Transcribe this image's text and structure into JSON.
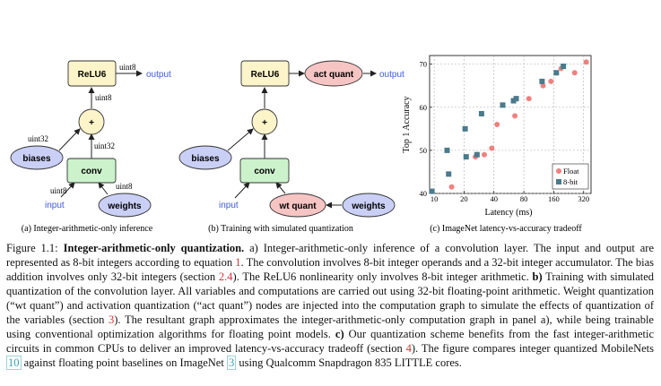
{
  "panel_a": {
    "nodes": {
      "relu": "ReLU6",
      "add": "+",
      "biases": "biases",
      "conv": "conv",
      "weights": "weights"
    },
    "labels": {
      "output": "output",
      "input": "input",
      "uint8_out": "uint8",
      "uint8_relu": "uint8",
      "uint32_bias": "uint32",
      "uint32_conv": "uint32",
      "uint8_in": "uint8",
      "uint8_w": "uint8"
    },
    "caption": "(a) Integer-arithmetic-only inference"
  },
  "panel_b": {
    "nodes": {
      "relu": "ReLU6",
      "act_quant": "act quant",
      "add": "+",
      "biases": "biases",
      "conv": "conv",
      "wt_quant": "wt quant",
      "weights": "weights"
    },
    "labels": {
      "output": "output",
      "input": "input"
    },
    "caption": "(b) Training with simulated quantization"
  },
  "panel_c": {
    "caption": "(c) ImageNet latency-vs-accuracy tradeoff"
  },
  "chart_data": {
    "type": "scatter",
    "xlabel": "Latency (ms)",
    "ylabel": "Top 1 Accuracy",
    "xscale": "log2",
    "xlim": [
      9,
      380
    ],
    "ylim": [
      40,
      72
    ],
    "xticks": [
      10,
      20,
      40,
      80,
      160,
      320
    ],
    "yticks": [
      40,
      50,
      60,
      70
    ],
    "grid": true,
    "legend": "bottom-right",
    "series": [
      {
        "name": "Float",
        "color": "#f08080",
        "marker": "circle",
        "points": [
          [
            15,
            41.5
          ],
          [
            26,
            48.5
          ],
          [
            32,
            49
          ],
          [
            38,
            50.5
          ],
          [
            43,
            56
          ],
          [
            65,
            58
          ],
          [
            90,
            62
          ],
          [
            125,
            65
          ],
          [
            150,
            66
          ],
          [
            190,
            69
          ],
          [
            260,
            68
          ],
          [
            340,
            70.5
          ]
        ]
      },
      {
        "name": "8-bit",
        "color": "#4a7a8c",
        "marker": "square",
        "points": [
          [
            9.5,
            40.5
          ],
          [
            14,
            44.5
          ],
          [
            13.5,
            50
          ],
          [
            21,
            48.5
          ],
          [
            20.5,
            55
          ],
          [
            27,
            49
          ],
          [
            30,
            58.5
          ],
          [
            49,
            60.5
          ],
          [
            63,
            61.5
          ],
          [
            67,
            62
          ],
          [
            122,
            66
          ],
          [
            170,
            68
          ],
          [
            200,
            69.5
          ]
        ]
      }
    ]
  },
  "caption": {
    "fig_label": "Figure 1.1: ",
    "title": "Integer-arithmetic-only quantization.",
    "p1": " a) Integer-arithmetic-only inference of a convolution layer. The input and output are represented as 8-bit integers according to equation ",
    "ref1": "1",
    "p2": ". The convolution involves 8-bit integer operands and a 32-bit integer accumulator. The bias addition involves only 32-bit integers (section ",
    "ref2": "2.4",
    "p3": "). The ReLU6 nonlinearity only involves 8-bit integer arithmetic. ",
    "b_label": "b)",
    "p4": " Training with simulated quantization of the convolution layer. All variables and computations are carried out using 32-bit floating-point arithmetic. Weight quantization (“wt quant”) and activation quantization (“act quant”) nodes are injected into the computation graph to simulate the effects of quantization of the variables (section ",
    "ref3": "3",
    "p5": "). The resultant graph approximates the integer-arithmetic-only computation graph in panel a), while being trainable using conventional optimization algorithms for floating point models. ",
    "c_label": "c)",
    "p6": " Our quantization scheme benefits from the fast integer-arithmetic circuits in common CPUs to deliver an improved latency-vs-accuracy tradeoff (section ",
    "ref4": "4",
    "p7": "). The figure compares integer quantized MobileNets ",
    "cite1": "10",
    "p8": " against floating point baselines on ImageNet ",
    "cite2": "3",
    "p9": " using Qualcomm Snapdragon 835 LITTLE cores."
  }
}
